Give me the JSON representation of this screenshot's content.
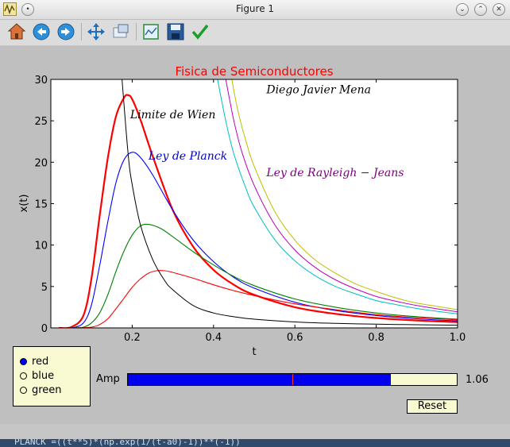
{
  "window": {
    "title": "Figure 1",
    "buttons": [
      "minimize",
      "maximize",
      "close"
    ]
  },
  "toolbar": {
    "items": [
      {
        "name": "home-icon",
        "tooltip": "Home"
      },
      {
        "name": "back-icon",
        "tooltip": "Back"
      },
      {
        "name": "forward-icon",
        "tooltip": "Forward"
      },
      {
        "name": "pan-icon",
        "tooltip": "Pan"
      },
      {
        "name": "zoom-icon",
        "tooltip": "Zoom"
      },
      {
        "name": "subplots-icon",
        "tooltip": "Subplots"
      },
      {
        "name": "save-icon",
        "tooltip": "Save"
      },
      {
        "name": "edit-check-icon",
        "tooltip": "Edit"
      }
    ]
  },
  "chart_data": {
    "type": "line",
    "title": "Fisica de Semiconductores",
    "title_color": "#ff0000",
    "xlabel": "t",
    "ylabel": "x(t)",
    "xlim": [
      0.0,
      1.0
    ],
    "ylim": [
      0,
      30
    ],
    "xticks": [
      "0.2",
      "0.4",
      "0.6",
      "0.8",
      "1.0"
    ],
    "yticks": [
      "0",
      "5",
      "10",
      "15",
      "20",
      "25",
      "30"
    ],
    "grid": false,
    "series": [
      {
        "color": "#ff0000",
        "width": 2.2,
        "x": [
          0.02,
          0.05,
          0.08,
          0.1,
          0.12,
          0.14,
          0.16,
          0.18,
          0.19,
          0.2,
          0.22,
          0.25,
          0.3,
          0.35,
          0.4,
          0.45,
          0.5,
          0.6,
          0.7,
          0.8,
          0.9,
          1.0
        ],
        "values": [
          0,
          0.1,
          1.5,
          6,
          13.5,
          20.5,
          25.5,
          27.8,
          28.1,
          27.6,
          25.2,
          20.8,
          14.2,
          9.8,
          7,
          5.2,
          4,
          2.5,
          1.7,
          1.2,
          0.9,
          0.7
        ]
      },
      {
        "color": "#0000ff",
        "width": 1.1,
        "x": [
          0.02,
          0.05,
          0.08,
          0.1,
          0.12,
          0.14,
          0.16,
          0.18,
          0.2,
          0.22,
          0.25,
          0.3,
          0.35,
          0.4,
          0.45,
          0.5,
          0.6,
          0.7,
          0.8,
          0.9,
          1.0
        ],
        "values": [
          0,
          0,
          0.6,
          2.8,
          7.5,
          12.8,
          17.5,
          20.3,
          21.2,
          20.6,
          18.5,
          14.2,
          10.6,
          8,
          6.1,
          4.8,
          3.1,
          2.1,
          1.5,
          1.1,
          0.85
        ]
      },
      {
        "color": "#008000",
        "width": 1.1,
        "x": [
          0.02,
          0.05,
          0.08,
          0.1,
          0.12,
          0.14,
          0.16,
          0.18,
          0.2,
          0.22,
          0.24,
          0.27,
          0.3,
          0.35,
          0.4,
          0.45,
          0.5,
          0.6,
          0.7,
          0.8,
          0.9,
          1.0
        ],
        "values": [
          0,
          0,
          0.1,
          0.6,
          1.8,
          4,
          6.8,
          9.3,
          11.2,
          12.3,
          12.5,
          12,
          11,
          9.2,
          7.6,
          6.2,
          5.1,
          3.5,
          2.5,
          1.8,
          1.35,
          1.05
        ]
      },
      {
        "color": "#ff0000",
        "width": 1.1,
        "x": [
          0.02,
          0.06,
          0.1,
          0.12,
          0.14,
          0.16,
          0.18,
          0.2,
          0.22,
          0.24,
          0.26,
          0.28,
          0.3,
          0.35,
          0.4,
          0.45,
          0.5,
          0.6,
          0.7,
          0.8,
          0.9,
          1.0
        ],
        "values": [
          0,
          0,
          0.1,
          0.4,
          1.1,
          2.3,
          3.6,
          4.9,
          5.9,
          6.6,
          6.9,
          6.9,
          6.7,
          6,
          5.2,
          4.5,
          3.9,
          2.9,
          2.2,
          1.6,
          1.25,
          0.98
        ]
      },
      {
        "color": "#000000",
        "width": 1.0,
        "x": [
          0.175,
          0.19,
          0.2,
          0.22,
          0.25,
          0.28,
          0.3,
          0.35,
          0.4,
          0.45,
          0.5,
          0.6,
          0.7,
          0.8,
          0.9,
          1.0
        ],
        "values": [
          30,
          21,
          17.3,
          12.5,
          8.3,
          5.7,
          4.6,
          2.7,
          1.8,
          1.35,
          1.05,
          0.72,
          0.55,
          0.45,
          0.38,
          0.33
        ]
      },
      {
        "color": "#bfbf00",
        "width": 1.0,
        "x": [
          0.445,
          0.46,
          0.48,
          0.5,
          0.55,
          0.6,
          0.65,
          0.7,
          0.75,
          0.8,
          0.85,
          0.9,
          0.95,
          1.0
        ],
        "values": [
          30,
          26.2,
          22.5,
          19.5,
          14.1,
          10.6,
          8.2,
          6.6,
          5.3,
          4.4,
          3.6,
          3,
          2.6,
          2.2
        ]
      },
      {
        "color": "#bf00bf",
        "width": 1.0,
        "x": [
          0.43,
          0.45,
          0.47,
          0.5,
          0.55,
          0.6,
          0.65,
          0.7,
          0.75,
          0.8,
          0.85,
          0.9,
          0.95,
          1.0
        ],
        "values": [
          30,
          25,
          21.2,
          17.2,
          12.5,
          9.4,
          7.3,
          5.8,
          4.7,
          3.8,
          3.2,
          2.7,
          2.3,
          1.95
        ]
      },
      {
        "color": "#00bfbf",
        "width": 1.0,
        "x": [
          0.41,
          0.43,
          0.45,
          0.48,
          0.5,
          0.55,
          0.6,
          0.65,
          0.7,
          0.75,
          0.8,
          0.85,
          0.9,
          0.95,
          1.0
        ],
        "values": [
          30,
          25,
          21,
          16.8,
          14.6,
          10.7,
          8.1,
          6.3,
          5,
          4.1,
          3.3,
          2.8,
          2.35,
          2,
          1.7
        ]
      }
    ],
    "annotations": [
      {
        "text": "Diego Javier Mena",
        "x": 0.53,
        "y": 28.3,
        "color": "#000000"
      },
      {
        "text": "Limite de Wien",
        "x": 0.195,
        "y": 25.3,
        "color": "#000000"
      },
      {
        "text": "Ley de Planck",
        "x": 0.24,
        "y": 20.3,
        "color": "#0000cc"
      },
      {
        "text": "Ley de Rayleigh − Jeans",
        "x": 0.53,
        "y": 18.3,
        "color": "#800080"
      }
    ]
  },
  "controls": {
    "radio": {
      "options": [
        "red",
        "blue",
        "green"
      ],
      "selected": "red"
    },
    "slider": {
      "label": "Amp",
      "value_text": "1.06",
      "fill_fraction": 0.8,
      "init_fraction": 0.5
    },
    "reset_label": "Reset"
  },
  "console": {
    "text": "PLANCK =((t**5)*(np.exp(1/(t-a0)-1))**(-1))"
  }
}
